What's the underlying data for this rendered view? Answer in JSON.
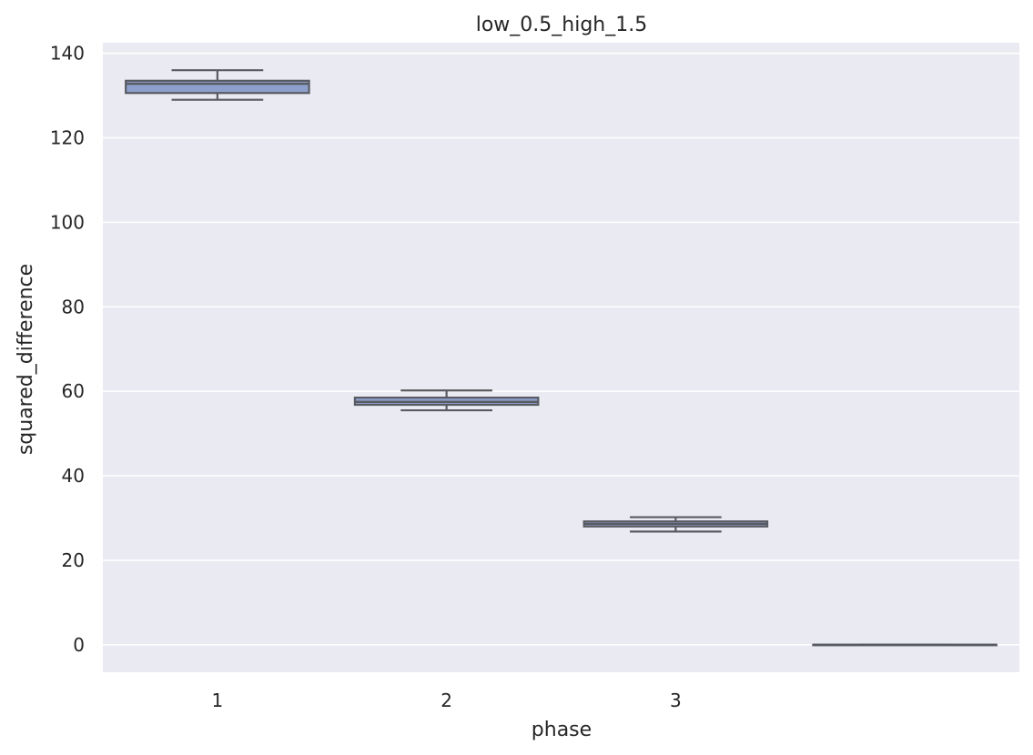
{
  "chart_data": {
    "type": "box",
    "title": "low_0.5_high_1.5",
    "xlabel": "phase",
    "ylabel": "squared_difference",
    "ylim": [
      -6.5,
      142.5
    ],
    "yticks": [
      0,
      20,
      40,
      60,
      80,
      100,
      120,
      140
    ],
    "grid": true,
    "categories": [
      "1",
      "2",
      "3",
      ""
    ],
    "boxes": [
      {
        "category": "1",
        "whisker_low": 129.0,
        "q1": 130.6,
        "median": 132.8,
        "q3": 133.5,
        "whisker_high": 136.0,
        "fill": "#8da0cb"
      },
      {
        "category": "2",
        "whisker_low": 55.5,
        "q1": 56.8,
        "median": 57.5,
        "q3": 58.5,
        "whisker_high": 60.2,
        "fill": "#8da0cb"
      },
      {
        "category": "3",
        "whisker_low": 26.8,
        "q1": 28.0,
        "median": 28.6,
        "q3": 29.2,
        "whisker_high": 30.2,
        "fill": "#8da0cb"
      },
      {
        "category": "",
        "whisker_low": 0.0,
        "q1": 0.0,
        "median": 0.0,
        "q3": 0.0,
        "whisker_high": 0.0,
        "fill": "#8da0cb"
      }
    ]
  },
  "colors": {
    "plot_background": "#eaeaf2",
    "grid": "#ffffff",
    "box_edge": "#595b63",
    "box_fill": "#8da0cb"
  }
}
